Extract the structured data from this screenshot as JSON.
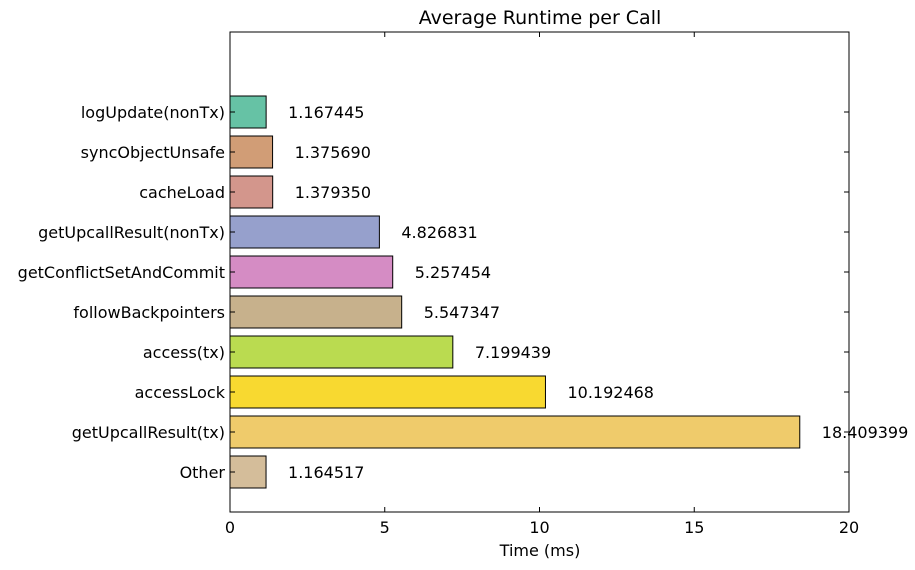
{
  "chart_data": {
    "type": "bar",
    "orientation": "horizontal",
    "title": "Average Runtime per Call",
    "xlabel": "Time (ms)",
    "ylabel": "",
    "xlim": [
      0,
      20
    ],
    "xticks": [
      0,
      5,
      10,
      15,
      20
    ],
    "grid": false,
    "categories": [
      "logUpdate(nonTx)",
      "syncObjectUnsafe",
      "cacheLoad",
      "getUpcallResult(nonTx)",
      "getConflictSetAndCommit",
      "followBackpointers",
      "access(tx)",
      "accessLock",
      "getUpcallResult(tx)",
      "Other"
    ],
    "values": [
      1.167445,
      1.37569,
      1.37935,
      4.826831,
      5.257454,
      5.547347,
      7.199439,
      10.192468,
      18.409399,
      1.164517
    ],
    "value_labels": [
      "1.167445",
      "1.375690",
      "1.379350",
      "4.826831",
      "5.257454",
      "5.547347",
      "7.199439",
      "10.192468",
      "18.409399",
      "1.164517"
    ],
    "colors": [
      "#66c2a5",
      "#d19d76",
      "#d3968c",
      "#96a0cc",
      "#d58cc4",
      "#c7b18c",
      "#badb50",
      "#f8d930",
      "#efcb6b",
      "#d4bd9a"
    ]
  }
}
